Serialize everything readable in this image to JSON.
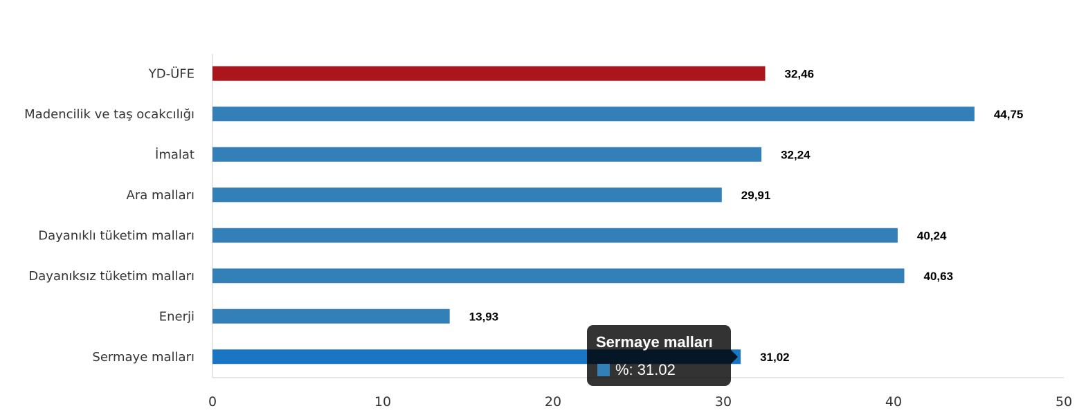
{
  "chart_data": {
    "type": "bar",
    "orientation": "horizontal",
    "categories": [
      "YD-ÜFE",
      "Madencilik ve taş ocakcılığı",
      "İmalat",
      "Ara malları",
      "Dayanıklı tüketim malları",
      "Dayanıksız tüketim malları",
      "Enerji",
      "Sermaye malları"
    ],
    "values": [
      32.46,
      44.75,
      32.24,
      29.91,
      40.24,
      40.63,
      13.93,
      31.02
    ],
    "data_labels": [
      "32,46",
      "44,75",
      "32,24",
      "29,91",
      "40,24",
      "40,63",
      "13,93",
      "31,02"
    ],
    "bar_colors": [
      "#ab161c",
      "#337fb8",
      "#337fb8",
      "#337fb8",
      "#337fb8",
      "#337fb8",
      "#337fb8",
      "#1a75c4"
    ],
    "xlim": [
      0,
      50
    ],
    "x_ticks": [
      "0",
      "10",
      "20",
      "30",
      "40",
      "50"
    ],
    "grid": false,
    "title": "",
    "xlabel": "",
    "ylabel": ""
  },
  "tooltip": {
    "title": "Sermaye malları",
    "value_text": "%: 31.02",
    "swatch_color": "#337fb8"
  }
}
